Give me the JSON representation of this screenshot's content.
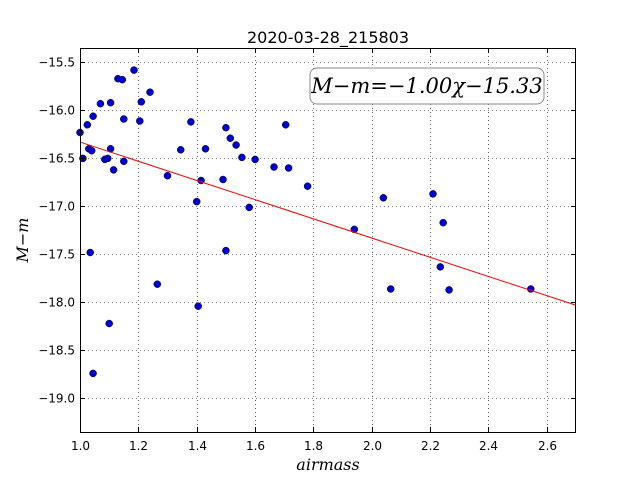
{
  "chart_data": {
    "type": "scatter",
    "title": "2020-03-28_215803",
    "xlabel": "airmass",
    "ylabel": "M−m",
    "xlim": [
      1.0,
      2.7
    ],
    "ylim": [
      -19.35,
      -15.35
    ],
    "y_inverted": true,
    "grid": true,
    "x_ticks": [
      1.0,
      1.2,
      1.4,
      1.6,
      1.8,
      2.0,
      2.2,
      2.4,
      2.6
    ],
    "x_tick_labels": [
      "1.0",
      "1.2",
      "1.4",
      "1.6",
      "1.8",
      "2.0",
      "2.2",
      "2.4",
      "2.6"
    ],
    "y_ticks": [
      -15.5,
      -16.0,
      -16.5,
      -17.0,
      -17.5,
      -18.0,
      -18.5,
      -19.0
    ],
    "y_tick_labels": [
      "−15.5",
      "−16.0",
      "−16.5",
      "−17.0",
      "−17.5",
      "−18.0",
      "−18.5",
      "−19.0"
    ],
    "annotation": "M−m=−1.00χ−15.33",
    "fit": {
      "slope": -1.0,
      "intercept": -15.33,
      "color": "#ff0000"
    },
    "series": [
      {
        "marker_color": "#0000cc",
        "points": [
          [
            1.0,
            -16.23
          ],
          [
            1.01,
            -16.5
          ],
          [
            1.025,
            -16.15
          ],
          [
            1.03,
            -16.4
          ],
          [
            1.035,
            -17.48
          ],
          [
            1.04,
            -16.42
          ],
          [
            1.045,
            -16.06
          ],
          [
            1.045,
            -18.74
          ],
          [
            1.07,
            -15.93
          ],
          [
            1.085,
            -16.51
          ],
          [
            1.095,
            -16.5
          ],
          [
            1.1,
            -18.22
          ],
          [
            1.105,
            -16.4
          ],
          [
            1.105,
            -15.92
          ],
          [
            1.115,
            -16.62
          ],
          [
            1.13,
            -15.67
          ],
          [
            1.145,
            -15.68
          ],
          [
            1.15,
            -16.09
          ],
          [
            1.15,
            -16.53
          ],
          [
            1.185,
            -15.58
          ],
          [
            1.205,
            -16.11
          ],
          [
            1.21,
            -15.91
          ],
          [
            1.24,
            -15.81
          ],
          [
            1.265,
            -17.81
          ],
          [
            1.3,
            -16.68
          ],
          [
            1.345,
            -16.41
          ],
          [
            1.38,
            -16.12
          ],
          [
            1.4,
            -16.95
          ],
          [
            1.405,
            -18.04
          ],
          [
            1.415,
            -16.73
          ],
          [
            1.43,
            -16.4
          ],
          [
            1.49,
            -16.72
          ],
          [
            1.5,
            -16.18
          ],
          [
            1.5,
            -17.46
          ],
          [
            1.515,
            -16.29
          ],
          [
            1.535,
            -16.36
          ],
          [
            1.555,
            -16.49
          ],
          [
            1.58,
            -17.01
          ],
          [
            1.6,
            -16.51
          ],
          [
            1.665,
            -16.59
          ],
          [
            1.705,
            -16.15
          ],
          [
            1.715,
            -16.6
          ],
          [
            1.78,
            -16.79
          ],
          [
            1.94,
            -17.24
          ],
          [
            2.04,
            -16.91
          ],
          [
            2.065,
            -17.86
          ],
          [
            2.21,
            -16.87
          ],
          [
            2.235,
            -17.63
          ],
          [
            2.245,
            -17.17
          ],
          [
            2.265,
            -17.87
          ],
          [
            2.545,
            -17.86
          ]
        ]
      }
    ]
  }
}
